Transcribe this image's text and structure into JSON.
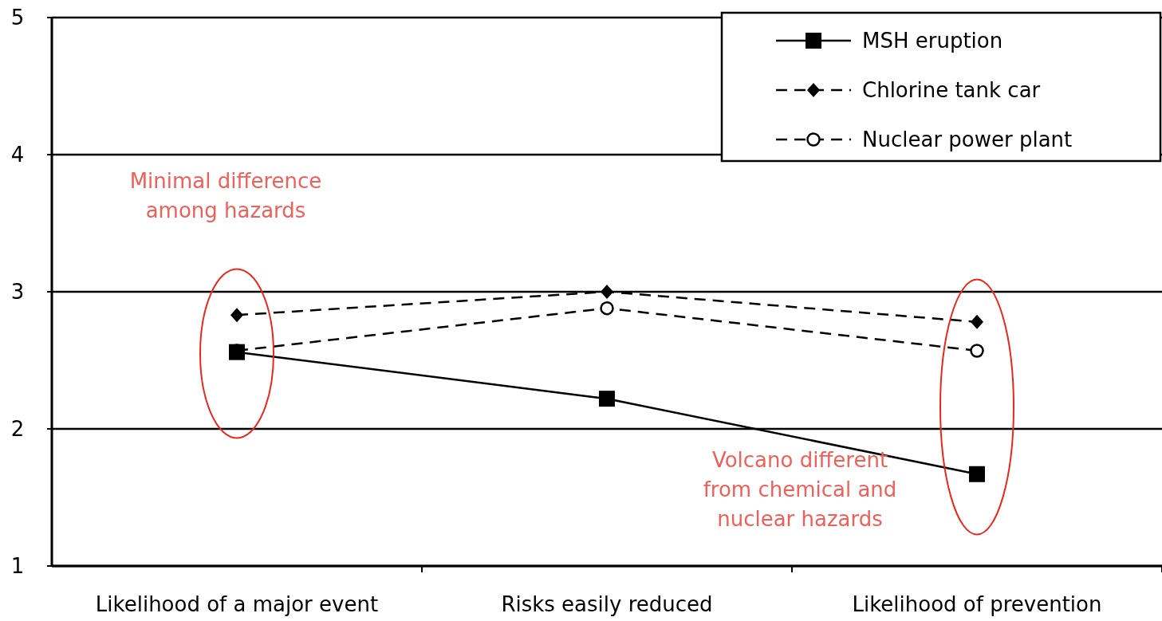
{
  "chart_data": {
    "type": "line",
    "categories": [
      "Likelihood of a major event",
      "Risks easily reduced",
      "Likelihood of prevention"
    ],
    "series": [
      {
        "name": "MSH eruption",
        "color": "#000000",
        "values": [
          2.56,
          2.22,
          1.67
        ],
        "marker": "square",
        "line_style": "solid"
      },
      {
        "name": "Chlorine tank car",
        "color": "#000000",
        "values": [
          2.83,
          3.0,
          2.78
        ],
        "marker": "diamond",
        "line_style": "dashed"
      },
      {
        "name": "Nuclear power plant",
        "color": "#000000",
        "values": [
          2.57,
          2.88,
          2.57
        ],
        "marker": "circle",
        "line_style": "dashed"
      }
    ],
    "ylim": [
      1,
      5
    ],
    "yticks": [
      1,
      2,
      3,
      4,
      5
    ],
    "grid": "y",
    "legend": "top right",
    "annotations": [
      "Minimal difference among hazards",
      "Volcano different from chemical and nuclear hazards"
    ]
  }
}
